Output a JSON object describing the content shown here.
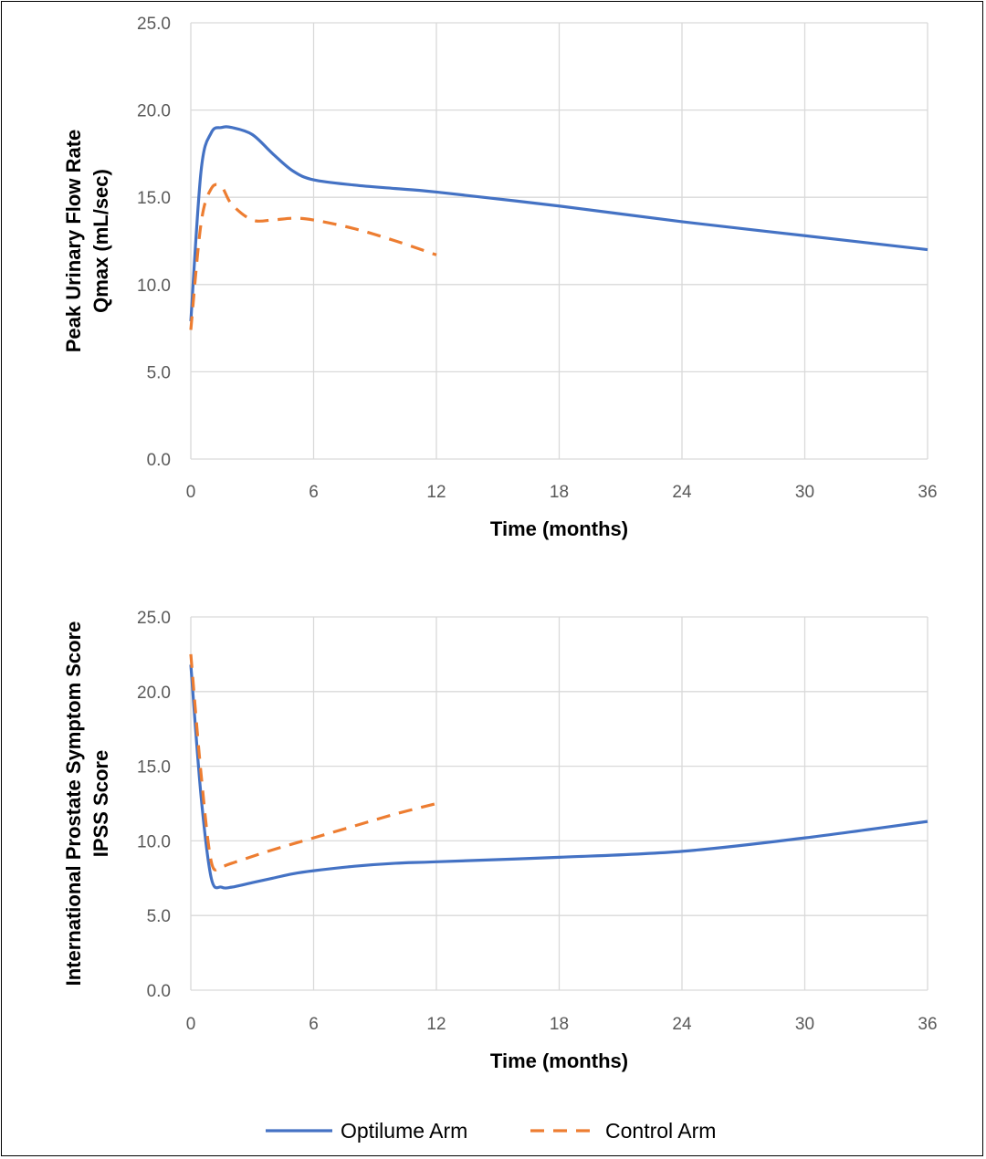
{
  "chart_data": [
    {
      "type": "line",
      "title": "",
      "xlabel": "Time (months)",
      "ylabel_line1": "Peak Urinary Flow Rate",
      "ylabel_line2": "Qmax (mL/sec)",
      "xlim": [
        0,
        36
      ],
      "ylim": [
        0,
        25
      ],
      "xticks": [
        0,
        6,
        12,
        18,
        24,
        30,
        36
      ],
      "yticks": [
        0,
        5,
        10,
        15,
        20,
        25
      ],
      "ytick_labels": [
        "0.0",
        "5.0",
        "10.0",
        "15.0",
        "20.0",
        "25.0"
      ],
      "grid": true,
      "series": [
        {
          "name": "Optilume Arm",
          "color": "#4472C4",
          "style": "solid",
          "x": [
            0,
            0.5,
            1,
            1.5,
            2,
            3,
            4,
            5,
            6,
            8,
            10,
            12,
            18,
            24,
            30,
            36
          ],
          "y": [
            7.9,
            16.5,
            18.7,
            19.0,
            19.0,
            18.6,
            17.5,
            16.5,
            16.0,
            15.7,
            15.5,
            15.3,
            14.5,
            13.6,
            12.8,
            12.0
          ]
        },
        {
          "name": "Control Arm",
          "color": "#ED7D31",
          "style": "dashed",
          "x": [
            0,
            0.5,
            1,
            1.5,
            2,
            3,
            4,
            5,
            6,
            8,
            10,
            12
          ],
          "y": [
            7.4,
            13.5,
            15.5,
            15.6,
            14.6,
            13.7,
            13.7,
            13.8,
            13.7,
            13.2,
            12.5,
            11.7
          ]
        }
      ]
    },
    {
      "type": "line",
      "title": "",
      "xlabel": "Time (months)",
      "ylabel_line1": "International Prostate Symptom Score",
      "ylabel_line2": "IPSS Score",
      "xlim": [
        0,
        36
      ],
      "ylim": [
        0,
        25
      ],
      "xticks": [
        0,
        6,
        12,
        18,
        24,
        30,
        36
      ],
      "yticks": [
        0,
        5,
        10,
        15,
        20,
        25
      ],
      "ytick_labels": [
        "0.0",
        "5.0",
        "10.0",
        "15.0",
        "20.0",
        "25.0"
      ],
      "grid": true,
      "series": [
        {
          "name": "Optilume Arm",
          "color": "#4472C4",
          "style": "solid",
          "x": [
            0,
            0.5,
            1,
            1.5,
            2,
            3,
            4,
            5,
            6,
            8,
            10,
            12,
            18,
            24,
            30,
            36
          ],
          "y": [
            21.8,
            13.0,
            7.5,
            6.9,
            6.9,
            7.2,
            7.5,
            7.8,
            8.0,
            8.3,
            8.5,
            8.6,
            8.9,
            9.3,
            10.2,
            11.3
          ]
        },
        {
          "name": "Control Arm",
          "color": "#ED7D31",
          "style": "dashed",
          "x": [
            0,
            0.5,
            1,
            1.5,
            2,
            4,
            6,
            8,
            10,
            12
          ],
          "y": [
            22.5,
            14.5,
            8.6,
            8.3,
            8.5,
            9.4,
            10.2,
            11.0,
            11.8,
            12.5
          ]
        }
      ]
    }
  ],
  "legend": {
    "placement": "bottom-center",
    "items": [
      {
        "label": "Optilume Arm",
        "color": "#4472C4",
        "style": "solid"
      },
      {
        "label": "Control Arm",
        "color": "#ED7D31",
        "style": "dashed"
      }
    ]
  }
}
